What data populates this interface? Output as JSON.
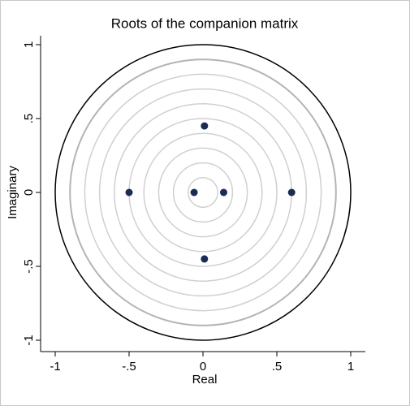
{
  "chart_data": {
    "type": "scatter",
    "title": "Roots of the companion matrix",
    "x_label": "Real",
    "y_label": "Imaginary",
    "series": [
      {
        "color": "#1a2b55",
        "x": [
          0.01,
          0.01,
          -0.5,
          -0.06,
          0.14,
          0.6
        ],
        "values": [
          0.45,
          -0.45,
          0,
          0,
          0,
          0
        ]
      }
    ],
    "xlim": [
      -1,
      1
    ],
    "ylim": [
      -1,
      1
    ],
    "xticks": [
      -1,
      {
        "value": -0.5,
        "label": "-.5"
      },
      0,
      {
        "value": 0.5,
        "label": ".5"
      },
      1
    ],
    "yticks": [
      -1,
      {
        "value": -0.5,
        "label": "-.5"
      },
      0,
      {
        "value": 0.5,
        "label": ".5"
      },
      1
    ]
  }
}
